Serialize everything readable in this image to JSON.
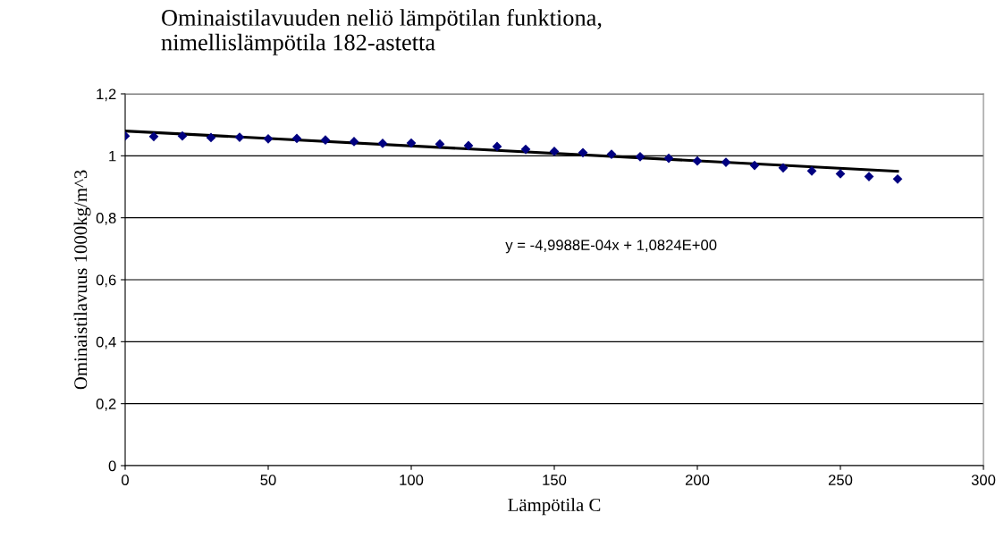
{
  "chart_data": {
    "type": "scatter",
    "title": "Ominaistilavuuden neliö lämpötilan funktiona,\nnimellislämpötila 182-astetta",
    "xlabel": "Lämpötila C",
    "ylabel": "Ominaistilavuus 1000kg/m^3",
    "x": [
      0,
      10,
      20,
      30,
      40,
      50,
      60,
      70,
      80,
      90,
      100,
      110,
      120,
      130,
      140,
      150,
      160,
      170,
      180,
      190,
      200,
      210,
      220,
      230,
      240,
      250,
      260,
      270
    ],
    "series": [
      {
        "color": "#000080",
        "marker": "diamond",
        "values": [
          1.064,
          1.062,
          1.064,
          1.059,
          1.06,
          1.055,
          1.056,
          1.051,
          1.046,
          1.04,
          1.041,
          1.038,
          1.033,
          1.03,
          1.021,
          1.014,
          1.01,
          1.005,
          0.997,
          0.992,
          0.983,
          0.979,
          0.969,
          0.961,
          0.951,
          0.942,
          0.933,
          0.925
        ]
      },
      {
        "type": "line",
        "color": "#000000",
        "marker": "none",
        "line_style": "solid",
        "x": [
          0,
          270
        ],
        "values": [
          1.08,
          0.95
        ]
      }
    ],
    "annotations": [
      "y = -4,9988E-04x + 1,0824E+00"
    ],
    "xlim": [
      0,
      300
    ],
    "xticks": [
      0,
      50,
      100,
      150,
      200,
      250,
      300
    ],
    "ylim": [
      0,
      1.2
    ],
    "yticks": [
      0,
      {
        "value": 0.2,
        "label": "0,2"
      },
      {
        "value": 0.4,
        "label": "0,4"
      },
      {
        "value": 0.6,
        "label": "0,6"
      },
      {
        "value": 0.8,
        "label": "0,8"
      },
      1,
      {
        "value": 1.2,
        "label": "1,2"
      }
    ],
    "grid": "y",
    "legend": false
  }
}
